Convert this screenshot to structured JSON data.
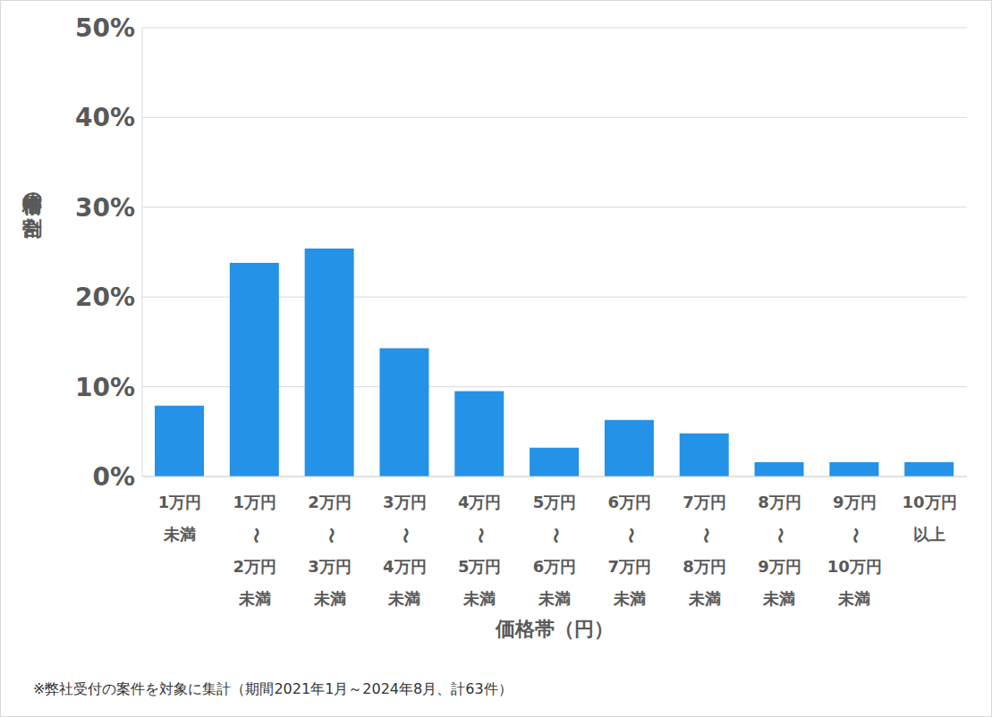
{
  "chart_data": {
    "type": "bar",
    "categories": [
      "1万円\n未満",
      "1万円\n〜\n2万円\n未満",
      "2万円\n〜\n3万円\n未満",
      "3万円\n〜\n4万円\n未満",
      "4万円\n〜\n5万円\n未満",
      "5万円\n〜\n6万円\n未満",
      "6万円\n〜\n7万円\n未満",
      "7万円\n〜\n8万円\n未満",
      "8万円\n〜\n9万円\n未満",
      "9万円\n〜\n10万円\n未満",
      "10万円\n以上"
    ],
    "values": [
      7.9,
      23.8,
      25.4,
      14.3,
      9.5,
      3.2,
      6.3,
      4.8,
      1.6,
      1.6,
      1.6
    ],
    "color": "#2492e6",
    "ylim": [
      0,
      50
    ],
    "yticks": [
      {
        "value": 0,
        "label": "0%"
      },
      {
        "value": 10,
        "label": "10%"
      },
      {
        "value": 20,
        "label": "20%"
      },
      {
        "value": 30,
        "label": "30%"
      },
      {
        "value": 40,
        "label": "40%"
      },
      {
        "value": 50,
        "label": "50%"
      }
    ],
    "grid": true,
    "x_label": "価格帯（円）",
    "y_label": "価格帯の割合",
    "footnote": "※弊社受付の案件を対象に集計（期間2021年1月～2024年8月、計63件）"
  }
}
